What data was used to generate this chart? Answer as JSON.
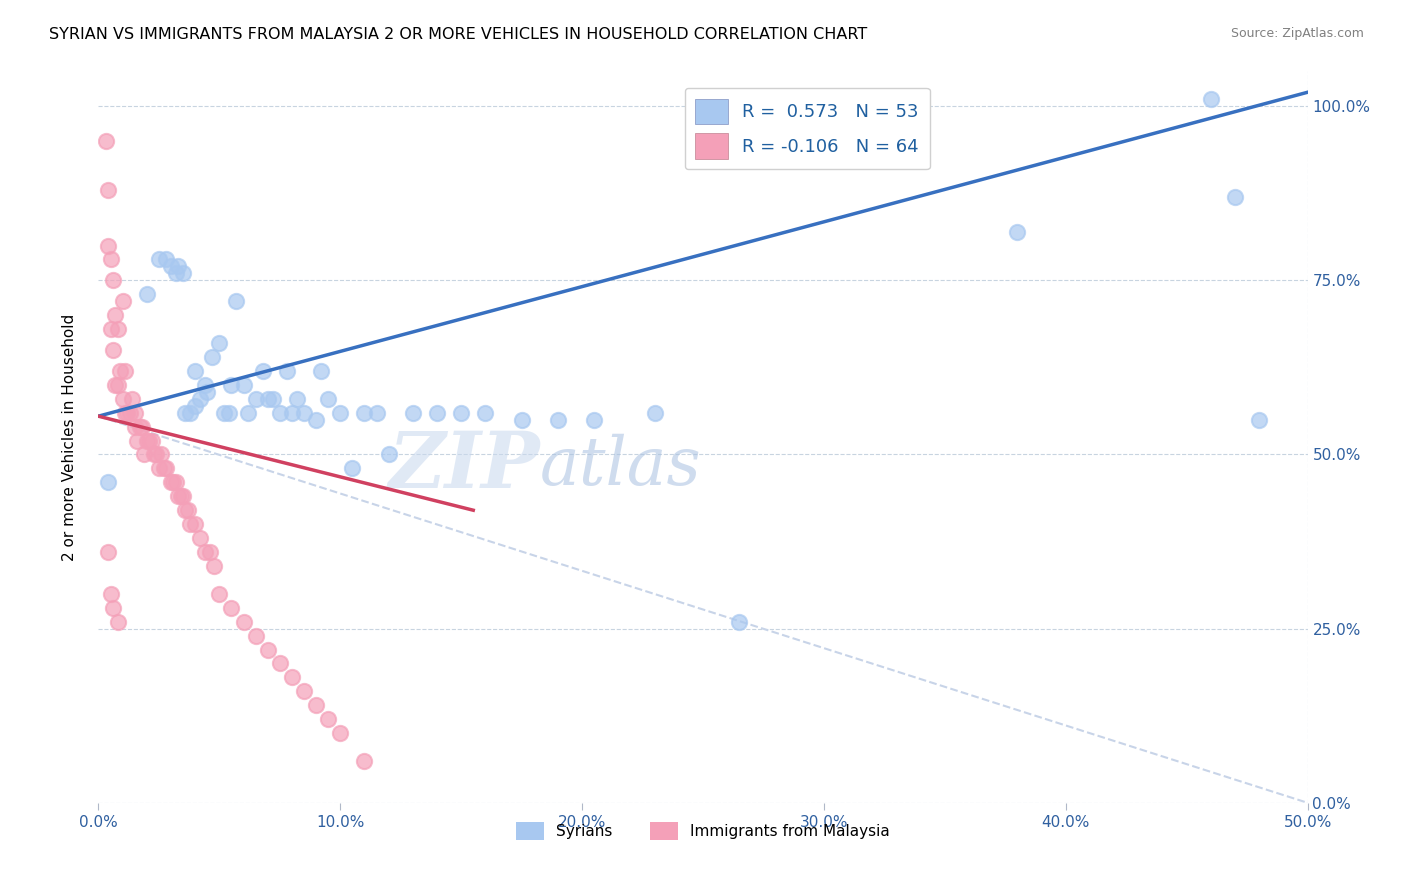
{
  "title": "SYRIAN VS IMMIGRANTS FROM MALAYSIA 2 OR MORE VEHICLES IN HOUSEHOLD CORRELATION CHART",
  "source": "Source: ZipAtlas.com",
  "ylabel": "2 or more Vehicles in Household",
  "xmin": 0.0,
  "xmax": 0.5,
  "ymin": 0.0,
  "ymax": 1.05,
  "x_ticks": [
    0.0,
    0.1,
    0.2,
    0.3,
    0.4,
    0.5
  ],
  "x_tick_labels": [
    "0.0%",
    "10.0%",
    "20.0%",
    "30.0%",
    "40.0%",
    "50.0%"
  ],
  "y_ticks_right": [
    0.0,
    0.25,
    0.5,
    0.75,
    1.0
  ],
  "y_tick_labels_right": [
    "0.0%",
    "25.0%",
    "50.0%",
    "75.0%",
    "100.0%"
  ],
  "legend_labels": [
    "Syrians",
    "Immigrants from Malaysia"
  ],
  "legend_r1": "R =  0.573",
  "legend_n1": "N = 53",
  "legend_r2": "R = -0.106",
  "legend_n2": "N = 64",
  "color_blue": "#A8C8F0",
  "color_pink": "#F4A0B8",
  "color_line_blue": "#3870C0",
  "color_line_pink": "#D04060",
  "color_line_dash": "#C8D4E8",
  "watermark_zip": "ZIP",
  "watermark_atlas": "atlas",
  "blue_line_x0": 0.0,
  "blue_line_y0": 0.555,
  "blue_line_x1": 0.5,
  "blue_line_y1": 1.02,
  "pink_line_x0": 0.0,
  "pink_line_y0": 0.555,
  "pink_line_x1": 0.155,
  "pink_line_y1": 0.42,
  "dash_line_x0": 0.0,
  "dash_line_y0": 0.555,
  "dash_line_x1": 0.5,
  "dash_line_y1": 0.0,
  "syrians_x": [
    0.004,
    0.02,
    0.025,
    0.028,
    0.03,
    0.032,
    0.033,
    0.035,
    0.036,
    0.038,
    0.04,
    0.04,
    0.042,
    0.044,
    0.045,
    0.047,
    0.05,
    0.052,
    0.054,
    0.055,
    0.057,
    0.06,
    0.062,
    0.065,
    0.068,
    0.07,
    0.072,
    0.075,
    0.078,
    0.08,
    0.082,
    0.085,
    0.09,
    0.092,
    0.095,
    0.1,
    0.105,
    0.11,
    0.115,
    0.12,
    0.13,
    0.14,
    0.15,
    0.16,
    0.175,
    0.19,
    0.205,
    0.23,
    0.265,
    0.38,
    0.46,
    0.47,
    0.48
  ],
  "syrians_y": [
    0.46,
    0.73,
    0.78,
    0.78,
    0.77,
    0.76,
    0.77,
    0.76,
    0.56,
    0.56,
    0.57,
    0.62,
    0.58,
    0.6,
    0.59,
    0.64,
    0.66,
    0.56,
    0.56,
    0.6,
    0.72,
    0.6,
    0.56,
    0.58,
    0.62,
    0.58,
    0.58,
    0.56,
    0.62,
    0.56,
    0.58,
    0.56,
    0.55,
    0.62,
    0.58,
    0.56,
    0.48,
    0.56,
    0.56,
    0.5,
    0.56,
    0.56,
    0.56,
    0.56,
    0.55,
    0.55,
    0.55,
    0.56,
    0.26,
    0.82,
    1.01,
    0.87,
    0.55
  ],
  "malaysia_x": [
    0.003,
    0.004,
    0.004,
    0.005,
    0.005,
    0.006,
    0.006,
    0.007,
    0.007,
    0.008,
    0.008,
    0.009,
    0.01,
    0.01,
    0.011,
    0.011,
    0.012,
    0.013,
    0.014,
    0.015,
    0.015,
    0.016,
    0.017,
    0.018,
    0.019,
    0.02,
    0.021,
    0.022,
    0.023,
    0.024,
    0.025,
    0.026,
    0.027,
    0.028,
    0.03,
    0.031,
    0.032,
    0.033,
    0.034,
    0.035,
    0.036,
    0.037,
    0.038,
    0.04,
    0.042,
    0.044,
    0.046,
    0.048,
    0.05,
    0.055,
    0.06,
    0.065,
    0.07,
    0.075,
    0.08,
    0.085,
    0.09,
    0.095,
    0.1,
    0.11,
    0.004,
    0.005,
    0.006,
    0.008
  ],
  "malaysia_y": [
    0.95,
    0.88,
    0.8,
    0.78,
    0.68,
    0.75,
    0.65,
    0.7,
    0.6,
    0.68,
    0.6,
    0.62,
    0.58,
    0.72,
    0.56,
    0.62,
    0.56,
    0.56,
    0.58,
    0.54,
    0.56,
    0.52,
    0.54,
    0.54,
    0.5,
    0.52,
    0.52,
    0.52,
    0.5,
    0.5,
    0.48,
    0.5,
    0.48,
    0.48,
    0.46,
    0.46,
    0.46,
    0.44,
    0.44,
    0.44,
    0.42,
    0.42,
    0.4,
    0.4,
    0.38,
    0.36,
    0.36,
    0.34,
    0.3,
    0.28,
    0.26,
    0.24,
    0.22,
    0.2,
    0.18,
    0.16,
    0.14,
    0.12,
    0.1,
    0.06,
    0.36,
    0.3,
    0.28,
    0.26
  ]
}
